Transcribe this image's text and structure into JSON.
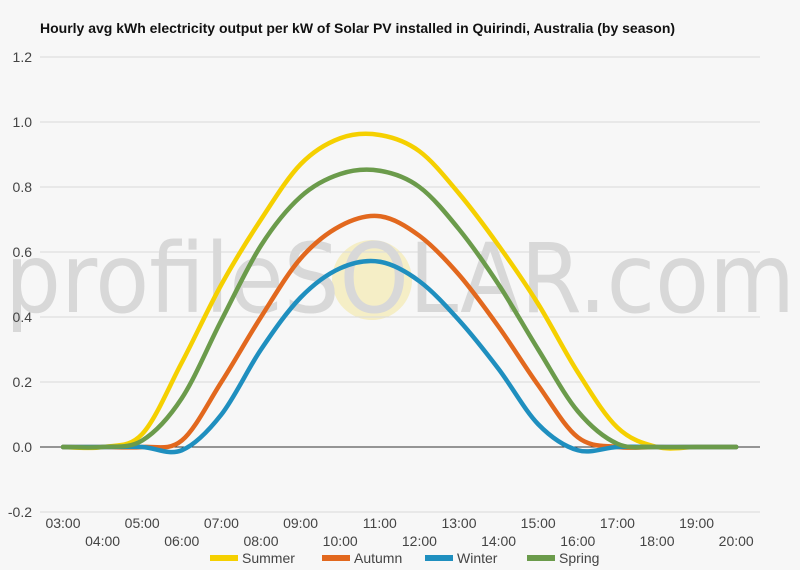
{
  "chart_data": {
    "type": "line",
    "title": "Hourly avg kWh electricity output per kW of Solar PV installed in Quirindi, Australia (by season)",
    "watermark": "profileSOLAR.com",
    "xlabel": "",
    "ylabel": "",
    "ylim": [
      -0.2,
      1.2
    ],
    "yticks": [
      "-0.2",
      "0.0",
      "0.2",
      "0.4",
      "0.6",
      "0.8",
      "1.0",
      "1.2"
    ],
    "categories": [
      "03:00",
      "04:00",
      "05:00",
      "06:00",
      "07:00",
      "08:00",
      "09:00",
      "10:00",
      "11:00",
      "12:00",
      "13:00",
      "14:00",
      "15:00",
      "16:00",
      "17:00",
      "18:00",
      "19:00",
      "20:00"
    ],
    "grid": true,
    "legend_position": "bottom",
    "series": [
      {
        "name": "Summer",
        "color": "#f5d000",
        "values": [
          0.0,
          0.0,
          0.04,
          0.26,
          0.5,
          0.7,
          0.87,
          0.95,
          0.96,
          0.91,
          0.78,
          0.62,
          0.44,
          0.23,
          0.06,
          0.0,
          0.0,
          0.0
        ]
      },
      {
        "name": "Autumn",
        "color": "#e2681e",
        "values": [
          0.0,
          0.0,
          0.0,
          0.02,
          0.2,
          0.4,
          0.58,
          0.68,
          0.71,
          0.65,
          0.53,
          0.37,
          0.19,
          0.03,
          0.0,
          0.0,
          0.0,
          0.0
        ]
      },
      {
        "name": "Winter",
        "color": "#1f8fbf",
        "values": [
          0.0,
          0.0,
          0.0,
          -0.01,
          0.1,
          0.3,
          0.46,
          0.55,
          0.57,
          0.51,
          0.39,
          0.24,
          0.07,
          -0.01,
          0.0,
          0.0,
          0.0,
          0.0
        ]
      },
      {
        "name": "Spring",
        "color": "#6b9b4b",
        "values": [
          0.0,
          0.0,
          0.02,
          0.15,
          0.39,
          0.62,
          0.77,
          0.84,
          0.85,
          0.8,
          0.67,
          0.5,
          0.3,
          0.11,
          0.01,
          0.0,
          0.0,
          0.0
        ]
      }
    ]
  }
}
